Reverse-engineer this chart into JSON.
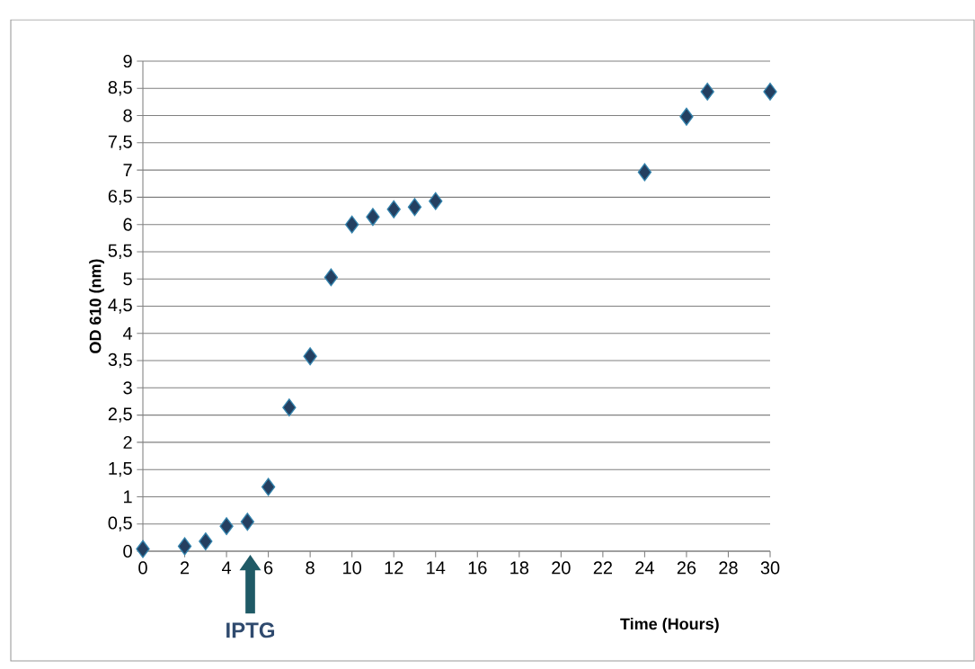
{
  "chart_data": {
    "type": "scatter",
    "xlabel": "Time (Hours)",
    "ylabel": "OD 610 (nm)",
    "x": [
      0,
      2,
      3,
      4,
      5,
      6,
      7,
      8,
      9,
      10,
      11,
      12,
      13,
      14,
      24,
      26,
      27,
      30
    ],
    "series": [
      {
        "color": "#243f60",
        "values": [
          0.04,
          0.09,
          0.18,
          0.46,
          0.54,
          1.18,
          2.64,
          3.58,
          5.03,
          6.0,
          6.14,
          6.28,
          6.32,
          6.43,
          6.96,
          7.98,
          8.44,
          8.44
        ]
      }
    ],
    "xlim": [
      0,
      30
    ],
    "xticks": [
      0,
      2,
      4,
      6,
      8,
      10,
      12,
      14,
      16,
      18,
      20,
      22,
      24,
      26,
      28,
      30
    ],
    "ylim": [
      0,
      9
    ],
    "yticks": [
      0,
      {
        "value": 0.5,
        "label": "0,5"
      },
      1,
      {
        "value": 1.5,
        "label": "1,5"
      },
      2,
      {
        "value": 2.5,
        "label": "2,5"
      },
      3,
      {
        "value": 3.5,
        "label": "3,5"
      },
      4,
      {
        "value": 4.5,
        "label": "4,5"
      },
      5,
      {
        "value": 5.5,
        "label": "5,5"
      },
      6,
      {
        "value": 6.5,
        "label": "6,5"
      },
      7,
      {
        "value": 7.5,
        "label": "7,5"
      },
      8,
      {
        "value": 8.5,
        "label": "8,5"
      },
      9
    ],
    "annotations": [
      "IPTG"
    ],
    "grid": "y",
    "marker": "diamond"
  }
}
